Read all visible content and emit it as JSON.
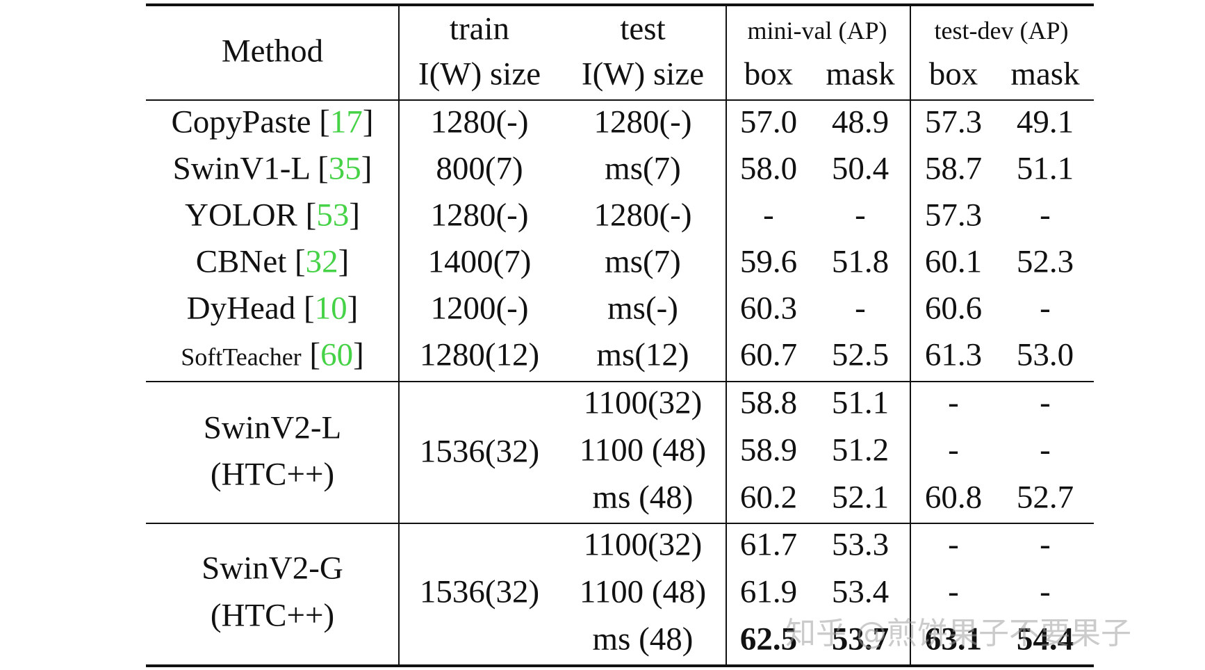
{
  "header": {
    "method": "Method",
    "train_top": "train",
    "train_bottom": "I(W) size",
    "test_top": "test",
    "test_bottom": "I(W) size",
    "minival": "mini-val (AP)",
    "testdev": "test-dev (AP)",
    "box": "box",
    "mask": "mask"
  },
  "rows": [
    {
      "name": "CopyPaste",
      "cite": "17",
      "train": "1280(-)",
      "test": "1280(-)",
      "mv_box": "57.0",
      "mv_mask": "48.9",
      "td_box": "57.3",
      "td_mask": "49.1"
    },
    {
      "name": "SwinV1-L",
      "cite": "35",
      "train": "800(7)",
      "test": "ms(7)",
      "mv_box": "58.0",
      "mv_mask": "50.4",
      "td_box": "58.7",
      "td_mask": "51.1"
    },
    {
      "name": "YOLOR",
      "cite": "53",
      "train": "1280(-)",
      "test": "1280(-)",
      "mv_box": "-",
      "mv_mask": "-",
      "td_box": "57.3",
      "td_mask": "-"
    },
    {
      "name": "CBNet",
      "cite": "32",
      "train": "1400(7)",
      "test": "ms(7)",
      "mv_box": "59.6",
      "mv_mask": "51.8",
      "td_box": "60.1",
      "td_mask": "52.3"
    },
    {
      "name": "DyHead",
      "cite": "10",
      "train": "1200(-)",
      "test": "ms(-)",
      "mv_box": "60.3",
      "mv_mask": "-",
      "td_box": "60.6",
      "td_mask": "-"
    },
    {
      "name": "SoftTeacher",
      "cite": "60",
      "train": "1280(12)",
      "test": "ms(12)",
      "mv_box": "60.7",
      "mv_mask": "52.5",
      "td_box": "61.3",
      "td_mask": "53.0"
    }
  ],
  "groups": [
    {
      "name_line1": "SwinV2-L",
      "name_line2": "(HTC++)",
      "train": "1536(32)",
      "sub": [
        {
          "test": "1100(32)",
          "mv_box": "58.8",
          "mv_mask": "51.1",
          "td_box": "-",
          "td_mask": "-"
        },
        {
          "test": "1100 (48)",
          "mv_box": "58.9",
          "mv_mask": "51.2",
          "td_box": "-",
          "td_mask": "-"
        },
        {
          "test": "ms (48)",
          "mv_box": "60.2",
          "mv_mask": "52.1",
          "td_box": "60.8",
          "td_mask": "52.7"
        }
      ]
    },
    {
      "name_line1": "SwinV2-G",
      "name_line2": "(HTC++)",
      "train": "1536(32)",
      "sub": [
        {
          "test": "1100(32)",
          "mv_box": "61.7",
          "mv_mask": "53.3",
          "td_box": "-",
          "td_mask": "-"
        },
        {
          "test": "1100 (48)",
          "mv_box": "61.9",
          "mv_mask": "53.4",
          "td_box": "-",
          "td_mask": "-"
        },
        {
          "test": "ms (48)",
          "mv_box": "62.5",
          "mv_mask": "53.7",
          "td_box": "63.1",
          "td_mask": "54.4"
        }
      ]
    }
  ],
  "watermark": "知乎 @煎饼果子不要果子"
}
